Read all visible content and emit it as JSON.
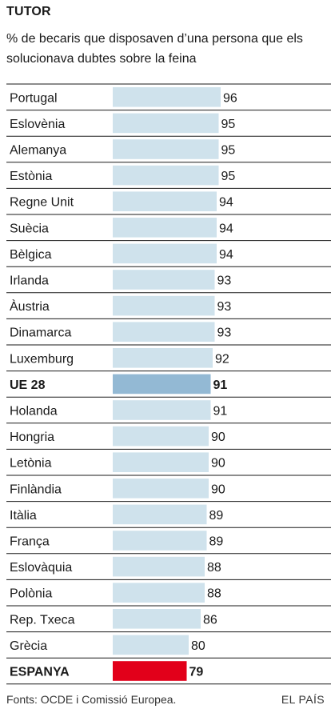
{
  "chart_title": "TUTOR",
  "subtitle": "% de becaris que disposaven d’una persona que els solucionava dubtes sobre la feina",
  "source": "Fonts: OCDE i Comissió Europea.",
  "brand": "EL PAÍS",
  "colors": {
    "bar": "#cfe2ec",
    "highlight_eu": "#93b9d4",
    "highlight_spain": "#e2001a",
    "grid": "#1a1a1a"
  },
  "chart_data": {
    "type": "bar",
    "orientation": "horizontal",
    "xlim": [
      0,
      100
    ],
    "categories": [
      "Portugal",
      "Eslovènia",
      "Alemanya",
      "Estònia",
      "Regne Unit",
      "Suècia",
      "Bèlgica",
      "Irlanda",
      "Àustria",
      "Dinamarca",
      "Luxemburg",
      "UE 28",
      "Holanda",
      "Hongria",
      "Letònia",
      "Finlàndia",
      "Itàlia",
      "França",
      "Eslovàquia",
      "Polònia",
      "Rep. Txeca",
      "Grècia",
      "ESPANYA"
    ],
    "values": [
      96,
      95,
      95,
      95,
      94,
      94,
      94,
      93,
      93,
      93,
      92,
      91,
      91,
      90,
      90,
      90,
      89,
      89,
      88,
      88,
      86,
      80,
      79
    ],
    "highlights": {
      "UE 28": "eu",
      "ESPANYA": "spain"
    }
  }
}
